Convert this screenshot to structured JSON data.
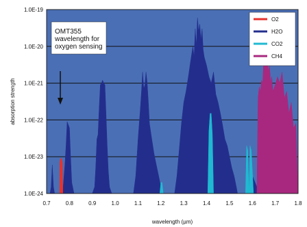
{
  "chart_data": {
    "type": "area",
    "xlabel": "wavelength (µm)",
    "ylabel": "absorption strength",
    "xlim": [
      0.7,
      1.8
    ],
    "ylim": [
      1e-24,
      1e-19
    ],
    "yscale": "log",
    "x_ticks": [
      "0.7",
      "0.8",
      "0.9",
      "1.0",
      "1.1",
      "1.2",
      "1.3",
      "1.4",
      "1.5",
      "1.6",
      "1.7",
      "1.8"
    ],
    "y_ticks": [
      "1.0E-24",
      "1.0E-23",
      "1.0E-22",
      "1.0E-21",
      "1.0E-20",
      "1.0E-19"
    ],
    "grid": "horizontal",
    "background": "#4a6fb5",
    "legend": {
      "placement": "top-right"
    },
    "annotation": {
      "lines": [
        "OMT355",
        "wavelength for",
        "oxygen sensing"
      ],
      "arrow_to_x": 0.76
    },
    "series": [
      {
        "name": "O2",
        "color": "#e8322c",
        "x": [
          0.757,
          0.758,
          0.761,
          0.765,
          0.769,
          0.771
        ],
        "y": [
          1e-24,
          7e-24,
          9e-24,
          9e-24,
          7e-24,
          1e-24
        ]
      },
      {
        "name": "H2O",
        "color": "#232e8c",
        "x": [
          0.7,
          0.715,
          0.72,
          0.725,
          0.73,
          0.735,
          0.745,
          0.75,
          0.77,
          0.78,
          0.785,
          0.79,
          0.8,
          0.805,
          0.81,
          0.82,
          0.83,
          0.84,
          0.85,
          0.86,
          0.88,
          0.89,
          0.9,
          0.91,
          0.915,
          0.92,
          0.925,
          0.93,
          0.935,
          0.94,
          0.945,
          0.95,
          0.955,
          0.96,
          0.965,
          0.97,
          0.975,
          0.985,
          1.08,
          1.09,
          1.1,
          1.11,
          1.115,
          1.12,
          1.125,
          1.13,
          1.135,
          1.14,
          1.145,
          1.15,
          1.16,
          1.17,
          1.18,
          1.19,
          1.2,
          1.21,
          1.22,
          1.235,
          1.26,
          1.27,
          1.28,
          1.29,
          1.3,
          1.31,
          1.32,
          1.33,
          1.34,
          1.345,
          1.35,
          1.355,
          1.36,
          1.365,
          1.37,
          1.375,
          1.38,
          1.385,
          1.39,
          1.4,
          1.41,
          1.42,
          1.43,
          1.44,
          1.45,
          1.46,
          1.47,
          1.48,
          1.49,
          1.5,
          1.51,
          1.52,
          1.53,
          1.535,
          1.58,
          1.6,
          1.62,
          1.63
        ],
        "y": [
          1e-24,
          1e-24,
          1.5e-24,
          6e-24,
          1.5e-24,
          1e-24,
          1e-24,
          1e-24,
          1e-24,
          6e-24,
          2e-23,
          9e-23,
          6e-23,
          1e-23,
          2e-24,
          1e-24,
          1e-24,
          1e-24,
          1e-24,
          1e-24,
          1e-24,
          1e-24,
          1e-24,
          1.5e-24,
          5e-24,
          3e-23,
          4e-23,
          2e-22,
          9e-22,
          1e-21,
          1.2e-21,
          1e-21,
          9e-22,
          1.5e-22,
          2e-23,
          4e-24,
          1.5e-24,
          1e-24,
          1e-24,
          3e-24,
          3e-23,
          2e-22,
          6e-22,
          2e-21,
          7e-22,
          9e-22,
          2e-21,
          1e-21,
          3e-22,
          8e-23,
          3e-23,
          1.2e-23,
          6e-24,
          3e-24,
          1.5e-24,
          1e-24,
          1e-24,
          1e-24,
          1e-24,
          3e-24,
          1.5e-23,
          8e-23,
          3e-22,
          6e-22,
          1.5e-21,
          4e-21,
          1e-20,
          5e-21,
          3e-20,
          1e-20,
          6e-20,
          2.5e-20,
          4e-20,
          1.5e-20,
          3e-20,
          8e-21,
          5e-21,
          3e-21,
          1.5e-21,
          1e-21,
          2e-21,
          5e-22,
          3e-22,
          1.5e-22,
          7e-23,
          3e-23,
          2e-23,
          1e-23,
          5e-24,
          3e-24,
          1.5e-24,
          1e-24,
          1e-24,
          3e-24,
          1.5e-24,
          1e-24
        ]
      },
      {
        "name": "CO2",
        "color": "#1fb9d2",
        "x": [
          1.195,
          1.2,
          1.205,
          1.21,
          1.405,
          1.41,
          1.415,
          1.42,
          1.425,
          1.43,
          1.57,
          1.575,
          1.58,
          1.585,
          1.59,
          1.595,
          1.6,
          1.605
        ],
        "y": [
          1e-24,
          2e-24,
          2e-24,
          1e-24,
          1e-24,
          5e-23,
          1.5e-22,
          1.5e-22,
          4e-23,
          1e-24,
          1e-24,
          2e-23,
          1.5e-23,
          1e-24,
          2e-23,
          1.5e-23,
          4e-24,
          1e-24
        ]
      },
      {
        "name": "CH4",
        "color": "#a8287f",
        "x": [
          1.62,
          1.625,
          1.63,
          1.635,
          1.64,
          1.645,
          1.65,
          1.66,
          1.665,
          1.67,
          1.675,
          1.68,
          1.685,
          1.69,
          1.7,
          1.71,
          1.72,
          1.73,
          1.74,
          1.75,
          1.76,
          1.77,
          1.78,
          1.79,
          1.8
        ],
        "y": [
          1e-24,
          4e-22,
          8e-22,
          6e-22,
          1.2e-21,
          1e-21,
          5e-21,
          3e-21,
          6e-21,
          2e-21,
          3e-21,
          1e-21,
          1.5e-21,
          6e-22,
          9e-22,
          1.5e-21,
          1e-21,
          2e-21,
          4e-22,
          6e-22,
          1.5e-22,
          3e-22,
          6e-23,
          8e-23,
          1e-24
        ]
      }
    ]
  }
}
